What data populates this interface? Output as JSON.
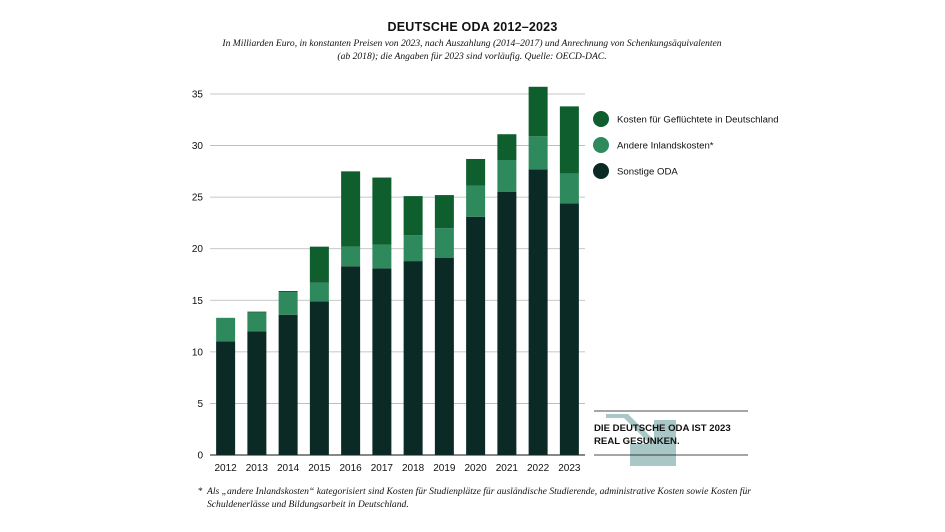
{
  "title": "DEUTSCHE ODA 2012–2023",
  "subtitle": "In Milliarden Euro, in konstanten Preisen von 2023, nach Auszahlung (2014–2017) und Anrechnung von Schenkungsäquivalenten (ab 2018); die Angaben für 2023 sind vorläufig. Quelle: OECD-DAC.",
  "callout": "DIE DEUTSCHE ODA IST 2023 REAL GESUNKEN.",
  "footnote_mark": "*",
  "footnote": "Als „andere Inlandskosten“ kategorisiert sind Kosten für Studienplätze für ausländische Studierende, administrative Kosten sowie Kosten für Schuldenerlässe und Bildungsarbeit in Deutschland.",
  "colors": {
    "sonstige": "#0b2a26",
    "andere": "#2e8a5c",
    "gefluechtete": "#0e5e2e",
    "grid": "#b4b4b4",
    "arrow": "#a9c7c6"
  },
  "icons": {
    "callout_arrow": "arrow-down-right-icon"
  },
  "chart_data": {
    "type": "bar",
    "stacked": true,
    "categories": [
      "2012",
      "2013",
      "2014",
      "2015",
      "2016",
      "2017",
      "2018",
      "2019",
      "2020",
      "2021",
      "2022",
      "2023"
    ],
    "series": [
      {
        "name": "Sonstige ODA",
        "values": [
          11.0,
          12.0,
          13.6,
          14.9,
          18.3,
          18.1,
          18.8,
          19.1,
          23.1,
          25.5,
          27.7,
          24.4
        ]
      },
      {
        "name": "Andere Inlandskosten*",
        "values": [
          2.3,
          1.8,
          2.2,
          1.8,
          1.9,
          2.3,
          2.5,
          2.9,
          3.0,
          3.1,
          3.2,
          2.9
        ]
      },
      {
        "name": "Kosten für Geflüchtete in Deutschland",
        "values": [
          0.0,
          0.1,
          0.1,
          3.5,
          7.3,
          6.5,
          3.8,
          3.2,
          2.6,
          2.5,
          4.8,
          6.5
        ]
      }
    ],
    "legend_order": [
      2,
      1,
      0
    ],
    "ylim": [
      0,
      35
    ],
    "yticks": [
      "0",
      "5",
      "10",
      "15",
      "20",
      "25",
      "30",
      "35"
    ],
    "grid": true,
    "legend_position": "right"
  }
}
